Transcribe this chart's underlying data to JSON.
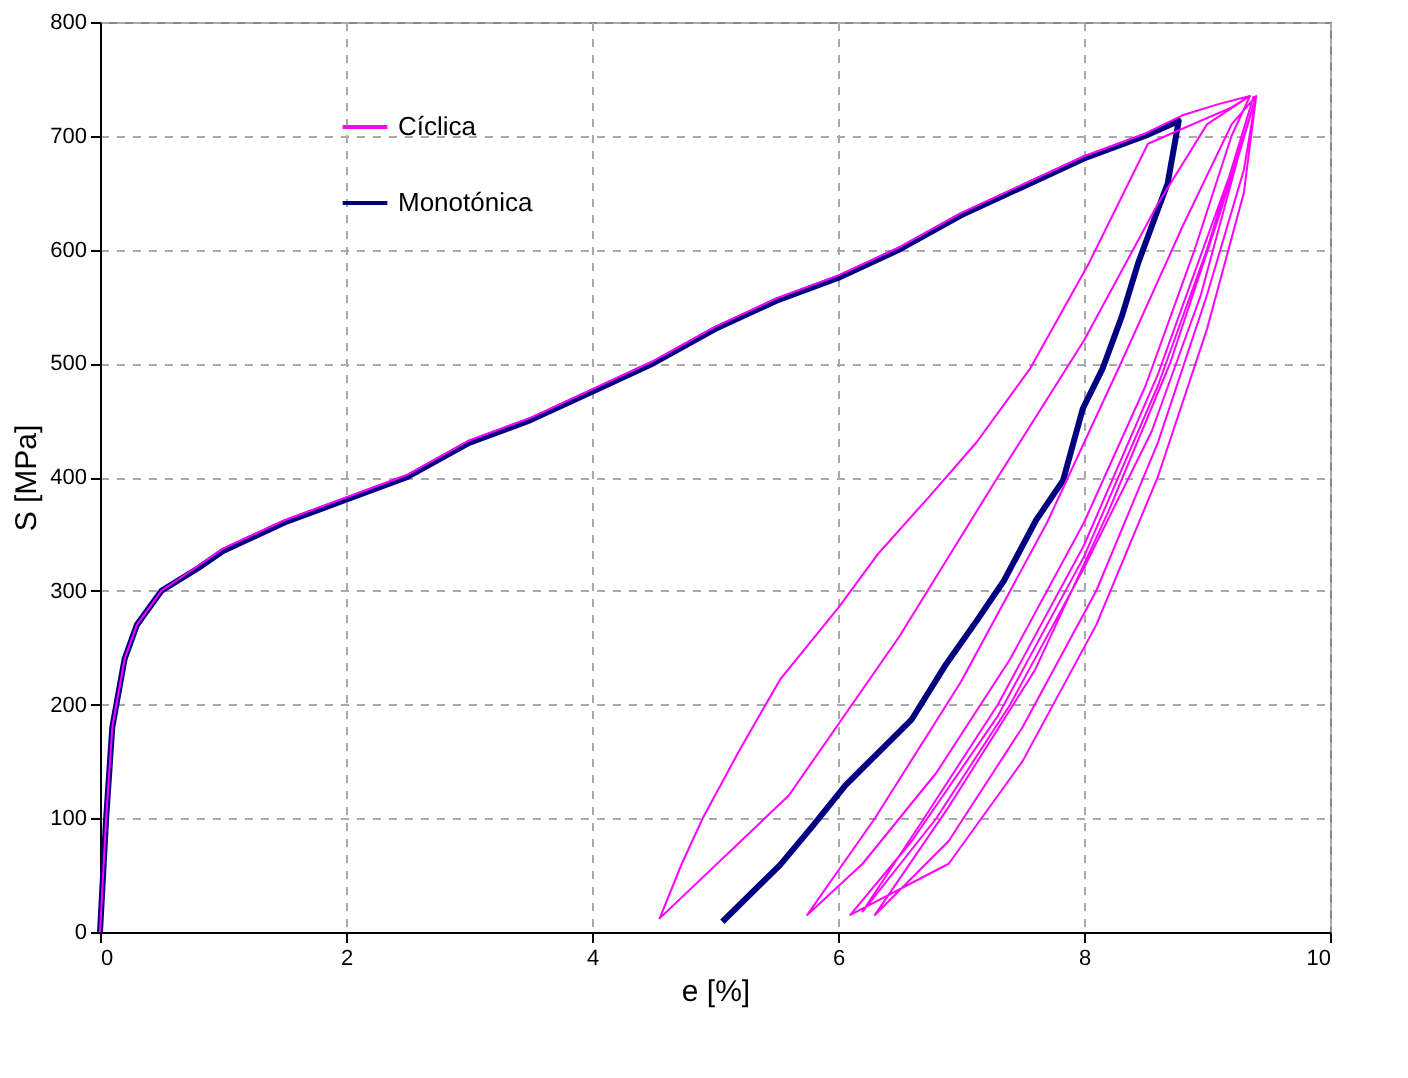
{
  "chart_data": {
    "type": "line",
    "xlabel": "e [%]",
    "ylabel": "S [MPa]",
    "xlim": [
      0,
      10
    ],
    "xticks": [
      0,
      2,
      4,
      6,
      8,
      10
    ],
    "ylim": [
      0,
      800
    ],
    "yticks": [
      0,
      100,
      200,
      300,
      400,
      500,
      600,
      700,
      800
    ],
    "grid": true,
    "legend": "top left",
    "line_style": "solid",
    "marker": "none",
    "series": [
      {
        "name": "Cíclica",
        "color": "#ff00ff",
        "x": [
          0,
          0.05,
          0.1,
          0.2,
          0.3,
          0.5,
          0.8,
          1,
          1.5,
          2,
          2.5,
          3,
          3.5,
          4,
          4.5,
          5,
          5.5,
          6,
          6.5,
          7,
          7.5,
          8,
          8.5,
          8.8,
          9.1,
          9.35,
          9.2,
          8.52,
          8.04,
          7.56,
          7.13,
          6.76,
          6.33,
          6.01,
          5.53,
          5.2,
          4.9,
          4.73,
          4.55,
          5.6,
          6.5,
          7.3,
          8,
          8.6,
          9.0,
          9.35,
          9.2,
          8.9,
          8.5,
          8,
          7.4,
          6.8,
          6.2,
          5.75,
          6.3,
          7,
          7.7,
          8.3,
          8.8,
          9.2,
          9.4,
          9.25,
          8.95,
          8.55,
          8.0,
          7.4,
          6.8,
          6.2,
          6.7,
          7.3,
          8.0,
          8.6,
          9.0,
          9.3,
          9.4,
          9.3,
          9.0,
          8.6,
          8.1,
          7.5,
          6.9,
          6.3,
          6.9,
          7.6,
          8.2,
          8.7,
          9.1,
          9.4,
          9.3,
          9.0,
          8.6,
          8.1,
          7.5,
          6.9,
          6.1,
          6.6,
          7.3,
          8.0,
          8.6,
          9.0,
          9.38
        ],
        "values": [
          0,
          100,
          180,
          240,
          270,
          300,
          322,
          337,
          362,
          382,
          402,
          432,
          452,
          477,
          502,
          532,
          557,
          577,
          602,
          632,
          657,
          682,
          702,
          718,
          728,
          735,
          725,
          693,
          588,
          495,
          431,
          385,
          333,
          286,
          222,
          160,
          100,
          60,
          12,
          120,
          260,
          400,
          520,
          640,
          710,
          735,
          700,
          600,
          480,
          360,
          240,
          140,
          60,
          15,
          100,
          220,
          360,
          500,
          620,
          710,
          735,
          680,
          560,
          440,
          320,
          200,
          100,
          18,
          100,
          200,
          340,
          490,
          610,
          700,
          735,
          670,
          560,
          430,
          300,
          180,
          80,
          15,
          110,
          230,
          370,
          500,
          630,
          735,
          650,
          530,
          400,
          270,
          150,
          60,
          15,
          80,
          190,
          330,
          480,
          600,
          735
        ]
      },
      {
        "name": "Monotónica",
        "color": "#000080",
        "x": [
          0,
          0.05,
          0.1,
          0.2,
          0.3,
          0.5,
          0.8,
          1,
          1.5,
          2,
          2.5,
          3,
          3.5,
          4,
          4.5,
          5,
          5.5,
          6,
          6.5,
          7,
          7.5,
          8,
          8.5,
          8.77,
          8.68,
          8.6,
          8.44,
          8.31,
          8.15,
          7.99,
          7.83,
          7.61,
          7.35,
          7.13,
          6.87,
          6.6,
          6.33,
          6.06,
          5.8,
          5.53,
          5.06
        ],
        "values": [
          0,
          100,
          180,
          240,
          270,
          300,
          320,
          335,
          360,
          380,
          400,
          430,
          450,
          475,
          500,
          530,
          555,
          575,
          600,
          630,
          655,
          680,
          700,
          713,
          658,
          635,
          588,
          542,
          495,
          460,
          397,
          362,
          309,
          274,
          234,
          187,
          158,
          129,
          94,
          59,
          9
        ]
      }
    ]
  }
}
